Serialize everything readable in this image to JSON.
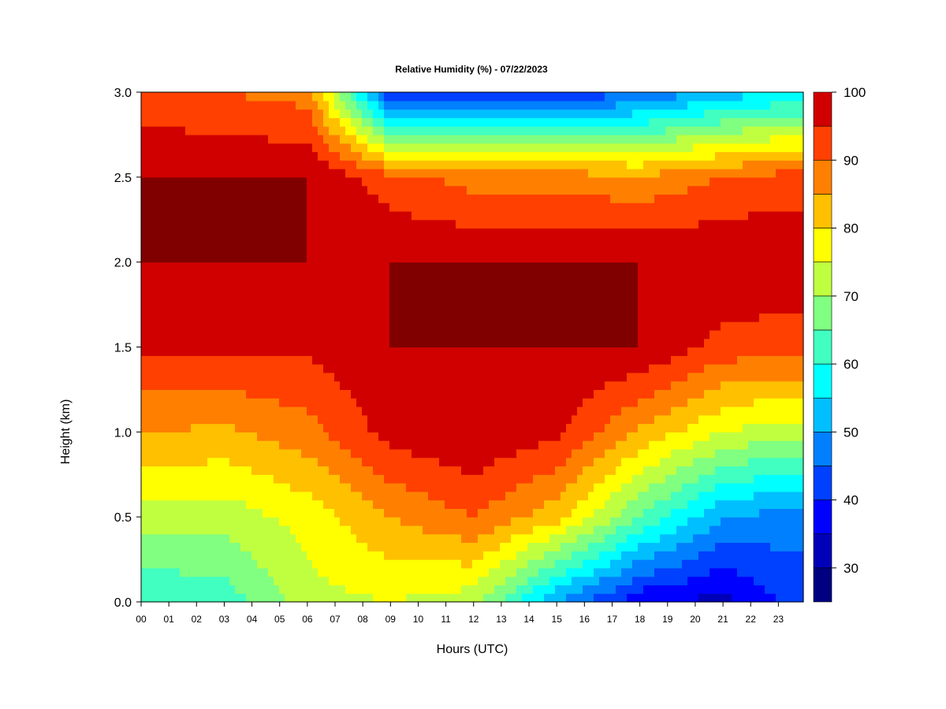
{
  "chart_data": {
    "type": "heatmap",
    "title": "Relative Humidity (%) - 07/22/2023",
    "xlabel": "Hours (UTC)",
    "ylabel": "Height (km)",
    "x_ticks": [
      "00",
      "01",
      "02",
      "03",
      "04",
      "05",
      "06",
      "07",
      "08",
      "09",
      "10",
      "11",
      "12",
      "13",
      "14",
      "15",
      "16",
      "17",
      "18",
      "19",
      "20",
      "21",
      "22",
      "23"
    ],
    "y_ticks": [
      "0.0",
      "0.5",
      "1.0",
      "1.5",
      "2.0",
      "2.5",
      "3.0"
    ],
    "xlim": [
      0,
      23.9
    ],
    "ylim": [
      0,
      3.0
    ],
    "colorbar": {
      "levels": [
        25,
        30,
        35,
        40,
        45,
        50,
        55,
        60,
        65,
        70,
        75,
        80,
        85,
        90,
        95,
        100
      ],
      "tick_labels": [
        "30",
        "40",
        "50",
        "60",
        "70",
        "80",
        "90",
        "100"
      ],
      "colors": [
        "#000080",
        "#0000b8",
        "#0000ff",
        "#0040ff",
        "#0080ff",
        "#00bfff",
        "#00ffff",
        "#40ffc0",
        "#80ff80",
        "#c0ff40",
        "#ffff00",
        "#ffc000",
        "#ff8000",
        "#ff4000",
        "#d00000",
        "#800000"
      ]
    },
    "profiles_by_hour": [
      {
        "hour": 0,
        "rh_at_heights_km": {
          "0.0": 60,
          "0.5": 73,
          "1.0": 85,
          "1.5": 96,
          "2.0": 100,
          "2.5": 100,
          "3.0": 92
        }
      },
      {
        "hour": 3,
        "rh_at_heights_km": {
          "0.0": 62,
          "0.5": 72,
          "1.0": 84,
          "1.5": 96,
          "2.0": 100,
          "2.5": 100,
          "3.0": 90
        }
      },
      {
        "hour": 6,
        "rh_at_heights_km": {
          "0.0": 73,
          "0.5": 77,
          "1.0": 88,
          "1.5": 96,
          "2.0": 100,
          "2.5": 100,
          "3.0": 88
        }
      },
      {
        "hour": 9,
        "rh_at_heights_km": {
          "0.0": 75,
          "0.5": 85,
          "1.0": 97,
          "1.5": 100,
          "2.0": 100,
          "2.5": 92,
          "3.0": 40
        }
      },
      {
        "hour": 12,
        "rh_at_heights_km": {
          "0.0": 72,
          "0.5": 90,
          "1.0": 100,
          "1.5": 100,
          "2.0": 100,
          "2.5": 88,
          "3.0": 40
        }
      },
      {
        "hour": 15,
        "rh_at_heights_km": {
          "0.0": 50,
          "0.5": 82,
          "1.0": 96,
          "1.5": 100,
          "2.0": 100,
          "2.5": 88,
          "3.0": 40
        }
      },
      {
        "hour": 18,
        "rh_at_heights_km": {
          "0.0": 36,
          "0.5": 65,
          "1.0": 84,
          "1.5": 100,
          "2.0": 100,
          "2.5": 86,
          "3.0": 45
        }
      },
      {
        "hour": 21,
        "rh_at_heights_km": {
          "0.0": 33,
          "0.5": 50,
          "1.0": 75,
          "1.5": 93,
          "2.0": 100,
          "2.5": 90,
          "3.0": 52
        }
      },
      {
        "hour": 23,
        "rh_at_heights_km": {
          "0.0": 40,
          "0.5": 48,
          "1.0": 72,
          "1.5": 92,
          "2.0": 100,
          "2.5": 92,
          "3.0": 55
        }
      }
    ],
    "grid": false,
    "legend": "colorbar-right"
  }
}
